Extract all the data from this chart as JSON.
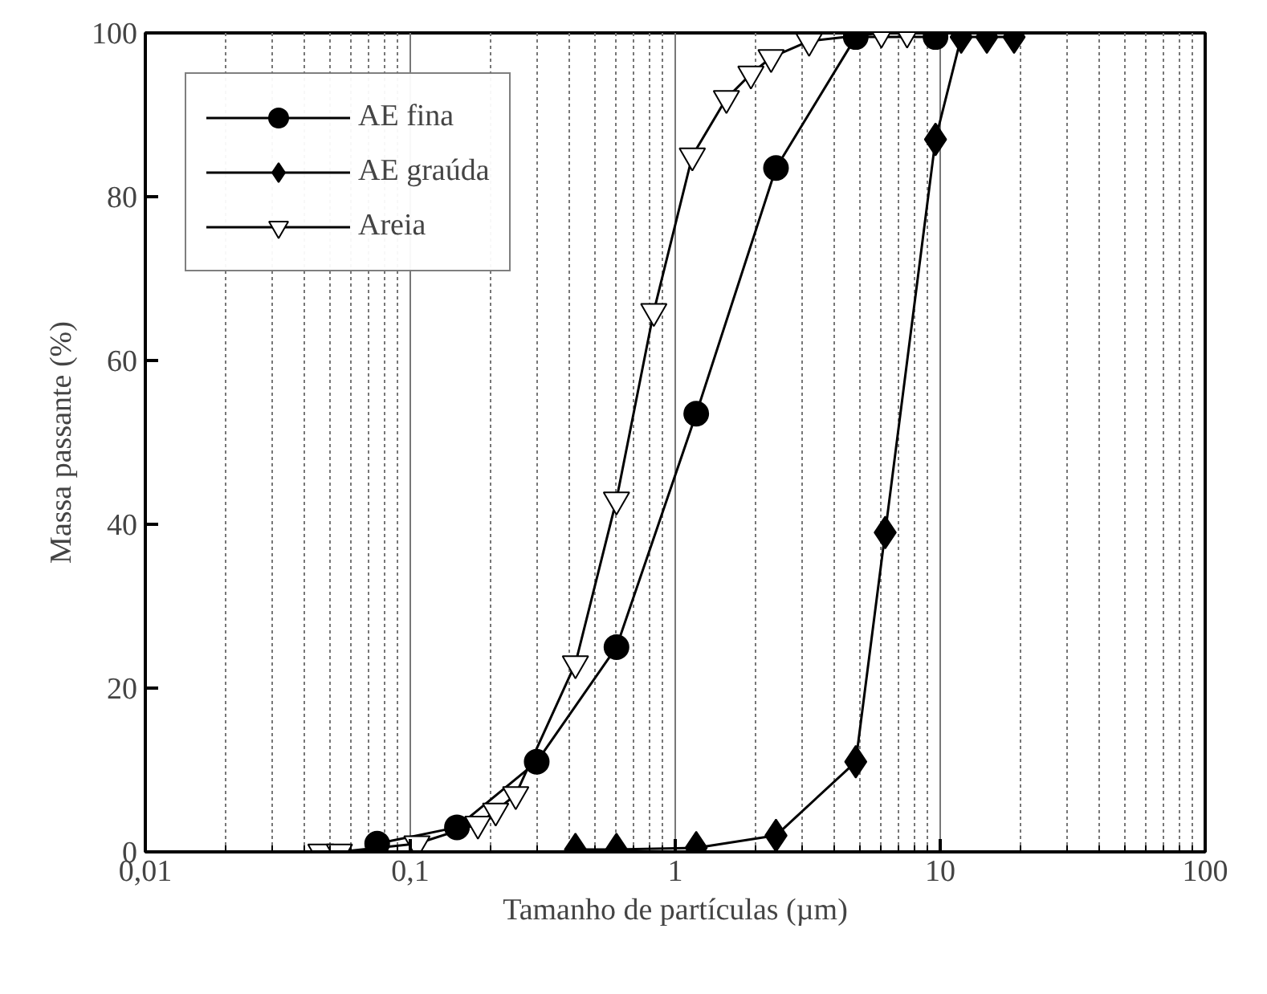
{
  "chart_data": {
    "type": "line",
    "xlabel": "Tamanho de partículas (µm)",
    "ylabel": "Massa passante (%)",
    "log": "x",
    "xlim": [
      0.01,
      100
    ],
    "xticks": [
      {
        "value": 0.01,
        "label": "0,01"
      },
      {
        "value": 0.1,
        "label": "0,1"
      },
      1,
      10,
      100
    ],
    "ylim": [
      0,
      100
    ],
    "yticks": [
      0,
      20,
      40,
      60,
      80,
      100
    ],
    "grid": "x",
    "legend": "top left",
    "line_style": "solid",
    "series": [
      {
        "name": "AE fina",
        "color": "#000000",
        "marker": "circle",
        "x": [
          0.075,
          0.15,
          0.3,
          0.6,
          1.2,
          2.4,
          4.8,
          9.6
        ],
        "values": [
          1,
          3,
          11,
          25,
          53.5,
          83.5,
          99.5,
          99.5
        ]
      },
      {
        "name": "AE graúda",
        "color": "#000000",
        "marker": "diamond",
        "x": [
          0.42,
          0.6,
          1.2,
          2.4,
          4.8,
          6.2,
          9.6,
          12,
          15,
          19
        ],
        "values": [
          0.3,
          0.3,
          0.5,
          2,
          11,
          39,
          87,
          99.5,
          99.5,
          99.5
        ]
      },
      {
        "name": "Areia",
        "color": "#000000",
        "marker": "triangle",
        "x": [
          0.046,
          0.054,
          0.106,
          0.18,
          0.21,
          0.25,
          0.42,
          0.6,
          0.83,
          1.16,
          1.56,
          1.93,
          2.3,
          3.2,
          6.0,
          7.5
        ],
        "values": [
          0,
          0,
          1,
          3.4,
          5,
          7,
          23,
          43,
          66,
          85,
          92,
          95,
          97,
          99,
          100,
          100
        ]
      }
    ]
  }
}
